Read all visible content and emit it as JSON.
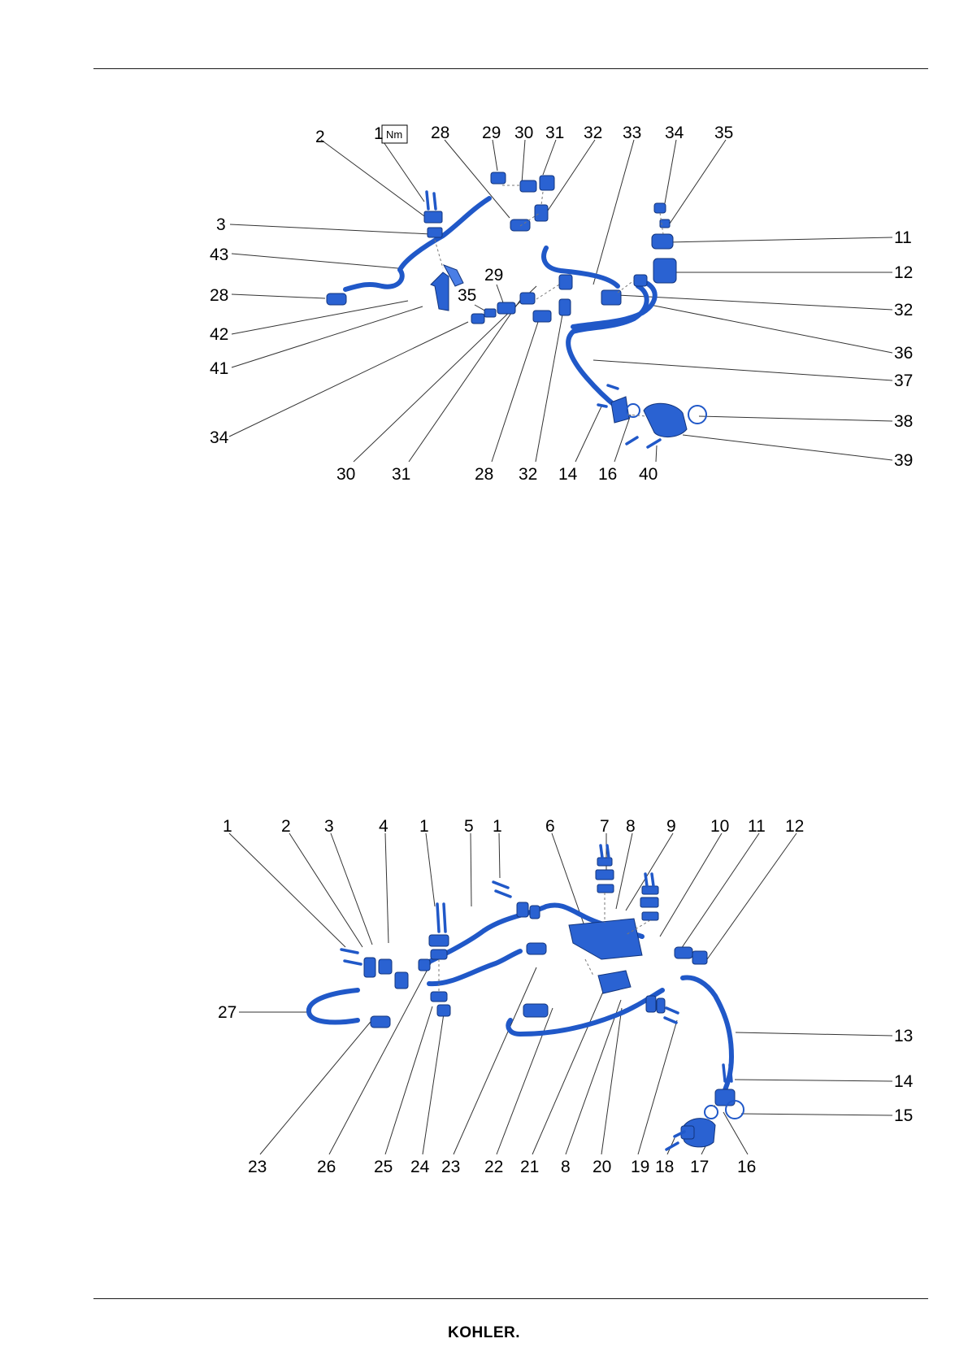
{
  "diagram_top": {
    "torque_badge": "Nm",
    "callouts": [
      "2",
      "1",
      "28",
      "29",
      "30",
      "31",
      "32",
      "33",
      "34",
      "35",
      "3",
      "43",
      "28",
      "42",
      "41",
      "34",
      "35",
      "29",
      "11",
      "12",
      "32",
      "36",
      "37",
      "38",
      "39",
      "30",
      "31",
      "28",
      "32",
      "14",
      "16",
      "40"
    ]
  },
  "diagram_bottom": {
    "callouts": [
      "1",
      "2",
      "3",
      "4",
      "1",
      "5",
      "1",
      "6",
      "7",
      "8",
      "9",
      "10",
      "11",
      "12",
      "27",
      "13",
      "14",
      "15",
      "23",
      "26",
      "25",
      "24",
      "23",
      "22",
      "21",
      "8",
      "20",
      "19",
      "18",
      "17",
      "16"
    ]
  },
  "footer": {
    "logo": "KOHLER."
  },
  "colors": {
    "part": "#2058c8",
    "rule": "#1a1a1a"
  }
}
